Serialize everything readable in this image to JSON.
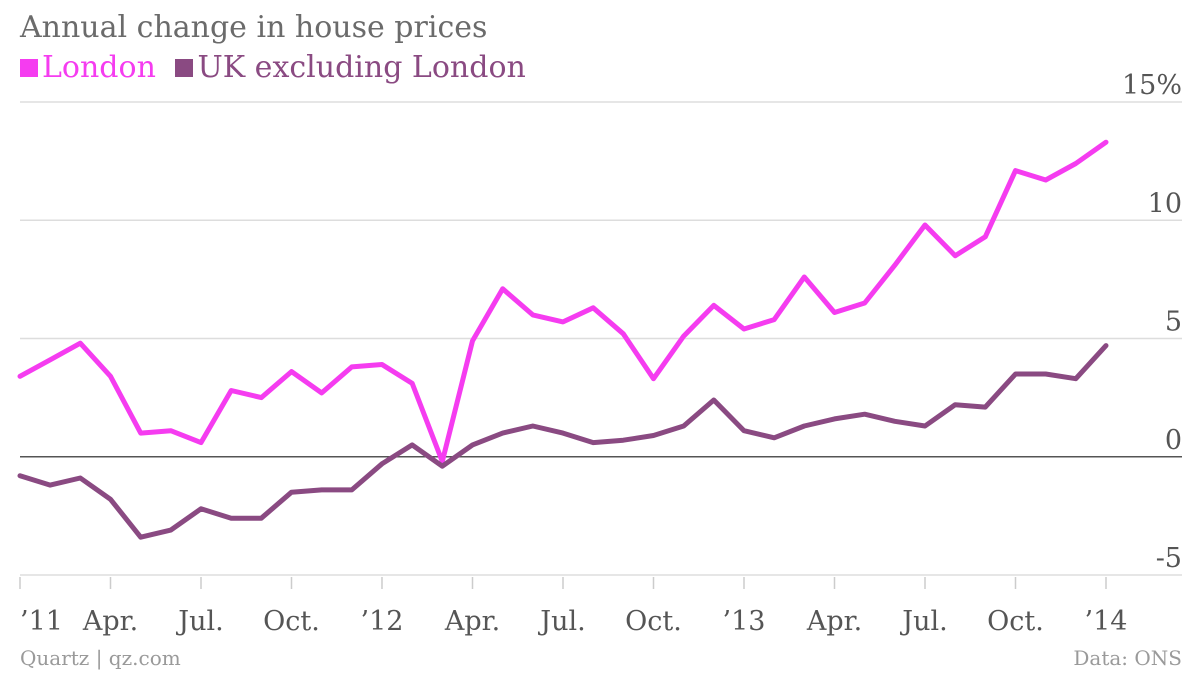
{
  "chart_data": {
    "type": "line",
    "title": "Annual change in house prices",
    "ylabel": "",
    "xlabel": "",
    "ylim": [
      -5,
      15
    ],
    "yticks": [
      -5,
      0,
      5,
      10,
      15
    ],
    "ytick_labels": [
      "-5",
      "0",
      "5",
      "10",
      "15%"
    ],
    "xtick_labels": [
      "’11",
      "Apr.",
      "Jul.",
      "Oct.",
      "’12",
      "Apr.",
      "Jul.",
      "Oct.",
      "’13",
      "Apr.",
      "Jul.",
      "Oct.",
      "’14"
    ],
    "xtick_index": [
      0,
      3,
      6,
      9,
      12,
      15,
      18,
      21,
      24,
      27,
      30,
      33,
      36
    ],
    "grid": true,
    "legend_position": "top-left",
    "x": [
      "Jan 2011",
      "Feb 2011",
      "Mar 2011",
      "Apr 2011",
      "May 2011",
      "Jun 2011",
      "Jul 2011",
      "Aug 2011",
      "Sep 2011",
      "Oct 2011",
      "Nov 2011",
      "Dec 2011",
      "Jan 2012",
      "Feb 2012",
      "Mar 2012",
      "Apr 2012",
      "May 2012",
      "Jun 2012",
      "Jul 2012",
      "Aug 2012",
      "Sep 2012",
      "Oct 2012",
      "Nov 2012",
      "Dec 2012",
      "Jan 2013",
      "Feb 2013",
      "Mar 2013",
      "Apr 2013",
      "May 2013",
      "Jun 2013",
      "Jul 2013",
      "Aug 2013",
      "Sep 2013",
      "Oct 2013",
      "Nov 2013",
      "Dec 2013",
      "Jan 2014"
    ],
    "series": [
      {
        "name": "London",
        "color": "#f53cf0",
        "values": [
          3.4,
          4.1,
          4.8,
          3.4,
          1.0,
          1.1,
          0.6,
          2.8,
          2.5,
          3.6,
          2.7,
          3.8,
          3.9,
          3.1,
          -0.2,
          4.9,
          7.1,
          6.0,
          5.7,
          6.3,
          5.2,
          3.3,
          5.1,
          6.4,
          5.4,
          5.8,
          7.6,
          6.1,
          6.5,
          8.1,
          9.8,
          8.5,
          9.3,
          12.1,
          11.7,
          12.4,
          13.3
        ]
      },
      {
        "name": "UK excluding London",
        "color": "#8a4a82",
        "values": [
          -0.8,
          -1.2,
          -0.9,
          -1.8,
          -3.4,
          -3.1,
          -2.2,
          -2.6,
          -2.6,
          -1.5,
          -1.4,
          -1.4,
          -0.3,
          0.5,
          -0.4,
          0.5,
          1.0,
          1.3,
          1.0,
          0.6,
          0.7,
          0.9,
          1.3,
          2.4,
          1.1,
          0.8,
          1.3,
          1.6,
          1.8,
          1.5,
          1.3,
          2.2,
          2.1,
          3.5,
          3.5,
          3.3,
          4.7
        ]
      }
    ]
  },
  "footer": {
    "source_left": "Quartz | qz.com",
    "source_right": "Data: ONS"
  }
}
